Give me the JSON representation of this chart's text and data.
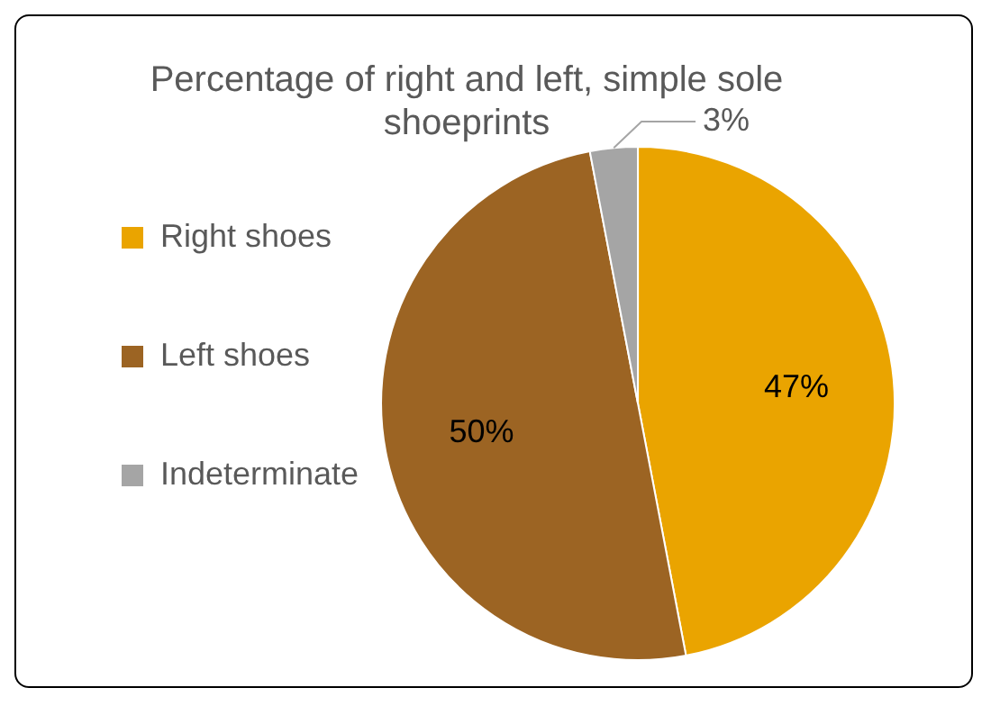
{
  "chart_data": {
    "type": "pie",
    "title": "Percentage of right and left, simple sole shoeprints",
    "categories": [
      "Right shoes",
      "Left shoes",
      "Indeterminate"
    ],
    "values": [
      47,
      50,
      3
    ],
    "colors": [
      "#eaa400",
      "#9c6423",
      "#a5a5a5"
    ],
    "value_labels": [
      "47%",
      "50%",
      "3%"
    ],
    "legend": "left"
  }
}
